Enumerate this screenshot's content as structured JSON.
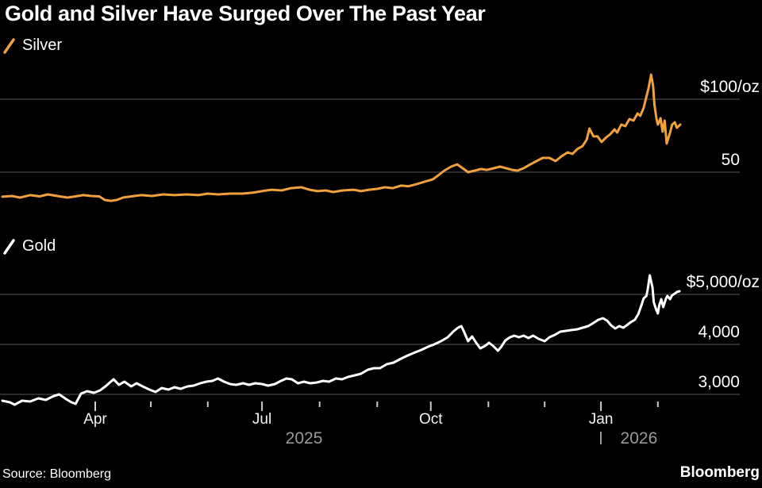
{
  "header": {
    "title": "Gold and Silver Have Surged Over The Past Year"
  },
  "footer": {
    "source": "Source: Bloomberg",
    "logo": "Bloomberg"
  },
  "colors": {
    "background": "#000000",
    "silver_line": "#F0A03C",
    "gold_line": "#FFFFFF",
    "gridline": "#464646",
    "tick": "#C9C9C9",
    "month_label": "#F2F2F2",
    "year_label": "#9A9A9A",
    "axis_label": "#FFFFFF"
  },
  "chart_data": [
    {
      "type": "line",
      "name": "Silver",
      "unit": "$/oz",
      "legend": {
        "label": "Silver"
      },
      "x_domain": {
        "start": "Feb 2025",
        "end": "Feb 2026"
      },
      "ylim": [
        25,
        120
      ],
      "y_gridlines": [
        {
          "value": 100,
          "label": "$100/oz"
        },
        {
          "value": 50,
          "label": "50"
        }
      ],
      "series": [
        [
          0,
          33.2
        ],
        [
          0.014,
          33.7
        ],
        [
          0.026,
          32.6
        ],
        [
          0.041,
          34.3
        ],
        [
          0.055,
          33.4
        ],
        [
          0.067,
          34.8
        ],
        [
          0.081,
          33.7
        ],
        [
          0.096,
          32.6
        ],
        [
          0.108,
          33.4
        ],
        [
          0.119,
          34.3
        ],
        [
          0.131,
          33.7
        ],
        [
          0.143,
          33.4
        ],
        [
          0.151,
          31
        ],
        [
          0.16,
          30.4
        ],
        [
          0.169,
          31
        ],
        [
          0.178,
          32.6
        ],
        [
          0.19,
          33.4
        ],
        [
          0.205,
          34.3
        ],
        [
          0.221,
          33.7
        ],
        [
          0.237,
          34.8
        ],
        [
          0.254,
          34.3
        ],
        [
          0.272,
          34.8
        ],
        [
          0.289,
          34.3
        ],
        [
          0.303,
          35.3
        ],
        [
          0.318,
          34.8
        ],
        [
          0.336,
          35.3
        ],
        [
          0.354,
          35.3
        ],
        [
          0.369,
          35.9
        ],
        [
          0.383,
          37
        ],
        [
          0.397,
          38
        ],
        [
          0.412,
          37.5
        ],
        [
          0.426,
          39.1
        ],
        [
          0.441,
          39.7
        ],
        [
          0.453,
          38
        ],
        [
          0.465,
          37
        ],
        [
          0.477,
          37.5
        ],
        [
          0.488,
          36.4
        ],
        [
          0.502,
          37.5
        ],
        [
          0.518,
          38
        ],
        [
          0.529,
          37
        ],
        [
          0.541,
          38
        ],
        [
          0.553,
          38.6
        ],
        [
          0.564,
          39.7
        ],
        [
          0.576,
          39.1
        ],
        [
          0.588,
          40.8
        ],
        [
          0.599,
          40.3
        ],
        [
          0.611,
          41.8
        ],
        [
          0.623,
          43.5
        ],
        [
          0.635,
          45.1
        ],
        [
          0.643,
          47.8
        ],
        [
          0.652,
          51.1
        ],
        [
          0.662,
          53.8
        ],
        [
          0.671,
          55.4
        ],
        [
          0.679,
          52.7
        ],
        [
          0.687,
          50
        ],
        [
          0.697,
          51.1
        ],
        [
          0.706,
          52.2
        ],
        [
          0.715,
          51.6
        ],
        [
          0.725,
          52.7
        ],
        [
          0.734,
          53.8
        ],
        [
          0.743,
          52.7
        ],
        [
          0.752,
          51.6
        ],
        [
          0.76,
          51.1
        ],
        [
          0.769,
          52.7
        ],
        [
          0.779,
          55.4
        ],
        [
          0.788,
          57.6
        ],
        [
          0.797,
          59.8
        ],
        [
          0.807,
          59.8
        ],
        [
          0.816,
          57.6
        ],
        [
          0.825,
          60.9
        ],
        [
          0.834,
          63.6
        ],
        [
          0.841,
          62.5
        ],
        [
          0.848,
          65.8
        ],
        [
          0.856,
          67.9
        ],
        [
          0.862,
          72.3
        ],
        [
          0.866,
          79.9
        ],
        [
          0.872,
          74.5
        ],
        [
          0.878,
          74.5
        ],
        [
          0.884,
          70.7
        ],
        [
          0.891,
          73.9
        ],
        [
          0.897,
          76.1
        ],
        [
          0.903,
          79.3
        ],
        [
          0.907,
          77.2
        ],
        [
          0.913,
          82.6
        ],
        [
          0.919,
          81.5
        ],
        [
          0.925,
          86.4
        ],
        [
          0.931,
          85.3
        ],
        [
          0.937,
          90.2
        ],
        [
          0.941,
          88.6
        ],
        [
          0.946,
          94
        ],
        [
          0.95,
          101.6
        ],
        [
          0.953,
          107.1
        ],
        [
          0.957,
          116.8
        ],
        [
          0.96,
          109.2
        ],
        [
          0.962,
          96.2
        ],
        [
          0.965,
          86.4
        ],
        [
          0.967,
          82.6
        ],
        [
          0.971,
          87
        ],
        [
          0.974,
          77.7
        ],
        [
          0.977,
          85.3
        ],
        [
          0.98,
          69.6
        ],
        [
          0.985,
          77.2
        ],
        [
          0.988,
          82.6
        ],
        [
          0.992,
          84.2
        ],
        [
          0.995,
          80.4
        ],
        [
          1,
          82.6
        ]
      ]
    },
    {
      "type": "line",
      "name": "Gold",
      "unit": "$/oz",
      "legend": {
        "label": "Gold"
      },
      "x_domain": {
        "start": "Feb 2025",
        "end": "Feb 2026"
      },
      "ylim": [
        2700,
        5500
      ],
      "y_gridlines": [
        {
          "value": 5000,
          "label": "$5,000/oz"
        },
        {
          "value": 4000,
          "label": "4,000"
        },
        {
          "value": 3000,
          "label": "3,000"
        }
      ],
      "x_ticks": {
        "major": [
          {
            "t": 0.137,
            "label": "Apr"
          },
          {
            "t": 0.383,
            "label": "Jul"
          },
          {
            "t": 0.632,
            "label": "Oct"
          },
          {
            "t": 0.883,
            "label": "Jan"
          }
        ],
        "minor_t": [
          0.219,
          0.303,
          0.468,
          0.553,
          0.717,
          0.8,
          0.967
        ]
      },
      "x_years": [
        {
          "t": 0.445,
          "label": "2025"
        },
        {
          "t": 0.939,
          "label": "2026",
          "divider_t": 0.883
        }
      ],
      "series": [
        [
          0,
          2873
        ],
        [
          0.011,
          2841
        ],
        [
          0.018,
          2794
        ],
        [
          0.029,
          2873
        ],
        [
          0.041,
          2857
        ],
        [
          0.053,
          2921
        ],
        [
          0.064,
          2889
        ],
        [
          0.076,
          2968
        ],
        [
          0.084,
          3000
        ],
        [
          0.094,
          2905
        ],
        [
          0.102,
          2841
        ],
        [
          0.108,
          2810
        ],
        [
          0.116,
          3016
        ],
        [
          0.125,
          3063
        ],
        [
          0.135,
          3032
        ],
        [
          0.144,
          3079
        ],
        [
          0.152,
          3159
        ],
        [
          0.16,
          3254
        ],
        [
          0.164,
          3302
        ],
        [
          0.172,
          3190
        ],
        [
          0.18,
          3254
        ],
        [
          0.19,
          3159
        ],
        [
          0.198,
          3222
        ],
        [
          0.207,
          3159
        ],
        [
          0.217,
          3095
        ],
        [
          0.226,
          3048
        ],
        [
          0.235,
          3127
        ],
        [
          0.245,
          3095
        ],
        [
          0.254,
          3143
        ],
        [
          0.263,
          3111
        ],
        [
          0.273,
          3159
        ],
        [
          0.282,
          3175
        ],
        [
          0.292,
          3222
        ],
        [
          0.301,
          3254
        ],
        [
          0.31,
          3270
        ],
        [
          0.318,
          3317
        ],
        [
          0.327,
          3254
        ],
        [
          0.336,
          3206
        ],
        [
          0.345,
          3190
        ],
        [
          0.355,
          3222
        ],
        [
          0.364,
          3190
        ],
        [
          0.373,
          3222
        ],
        [
          0.383,
          3206
        ],
        [
          0.392,
          3175
        ],
        [
          0.402,
          3206
        ],
        [
          0.411,
          3270
        ],
        [
          0.419,
          3317
        ],
        [
          0.427,
          3302
        ],
        [
          0.436,
          3222
        ],
        [
          0.445,
          3254
        ],
        [
          0.454,
          3222
        ],
        [
          0.464,
          3238
        ],
        [
          0.473,
          3270
        ],
        [
          0.482,
          3254
        ],
        [
          0.492,
          3317
        ],
        [
          0.501,
          3302
        ],
        [
          0.51,
          3349
        ],
        [
          0.52,
          3381
        ],
        [
          0.529,
          3413
        ],
        [
          0.539,
          3492
        ],
        [
          0.548,
          3524
        ],
        [
          0.557,
          3524
        ],
        [
          0.567,
          3603
        ],
        [
          0.577,
          3635
        ],
        [
          0.588,
          3714
        ],
        [
          0.598,
          3778
        ],
        [
          0.609,
          3841
        ],
        [
          0.618,
          3889
        ],
        [
          0.628,
          3952
        ],
        [
          0.637,
          4000
        ],
        [
          0.647,
          4063
        ],
        [
          0.657,
          4143
        ],
        [
          0.665,
          4254
        ],
        [
          0.672,
          4333
        ],
        [
          0.677,
          4365
        ],
        [
          0.681,
          4254
        ],
        [
          0.687,
          4063
        ],
        [
          0.693,
          4159
        ],
        [
          0.699,
          4032
        ],
        [
          0.705,
          3921
        ],
        [
          0.712,
          3968
        ],
        [
          0.718,
          4032
        ],
        [
          0.724,
          3968
        ],
        [
          0.731,
          3873
        ],
        [
          0.736,
          3952
        ],
        [
          0.742,
          4079
        ],
        [
          0.749,
          4143
        ],
        [
          0.755,
          4175
        ],
        [
          0.762,
          4143
        ],
        [
          0.769,
          4175
        ],
        [
          0.776,
          4127
        ],
        [
          0.783,
          4175
        ],
        [
          0.791,
          4111
        ],
        [
          0.8,
          4063
        ],
        [
          0.807,
          4143
        ],
        [
          0.815,
          4190
        ],
        [
          0.823,
          4254
        ],
        [
          0.831,
          4270
        ],
        [
          0.839,
          4286
        ],
        [
          0.848,
          4302
        ],
        [
          0.856,
          4333
        ],
        [
          0.864,
          4365
        ],
        [
          0.872,
          4429
        ],
        [
          0.879,
          4492
        ],
        [
          0.886,
          4524
        ],
        [
          0.892,
          4476
        ],
        [
          0.898,
          4381
        ],
        [
          0.904,
          4317
        ],
        [
          0.91,
          4365
        ],
        [
          0.916,
          4333
        ],
        [
          0.921,
          4381
        ],
        [
          0.927,
          4444
        ],
        [
          0.933,
          4492
        ],
        [
          0.938,
          4603
        ],
        [
          0.943,
          4794
        ],
        [
          0.946,
          4921
        ],
        [
          0.95,
          4968
        ],
        [
          0.952,
          5095
        ],
        [
          0.955,
          5381
        ],
        [
          0.959,
          5143
        ],
        [
          0.961,
          4841
        ],
        [
          0.964,
          4714
        ],
        [
          0.967,
          4619
        ],
        [
          0.969,
          4778
        ],
        [
          0.972,
          4905
        ],
        [
          0.975,
          4746
        ],
        [
          0.979,
          4921
        ],
        [
          0.981,
          4968
        ],
        [
          0.985,
          4905
        ],
        [
          0.988,
          4984
        ],
        [
          0.992,
          5016
        ],
        [
          0.995,
          5048
        ],
        [
          0.999,
          5063
        ]
      ]
    }
  ]
}
